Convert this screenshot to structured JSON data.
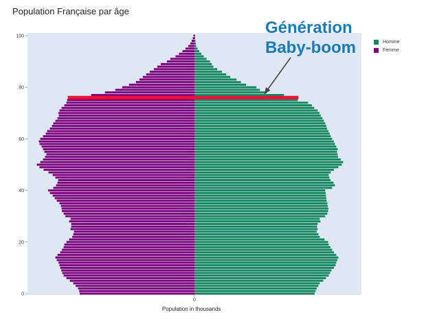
{
  "chart_data": {
    "type": "bar",
    "orientation": "horizontal",
    "title": "Population Française par âge",
    "xlabel": "Population in thousands",
    "ylabel": "",
    "ylim": [
      0,
      100
    ],
    "xlim": [
      -485,
      485
    ],
    "yticks": [
      "0",
      "20",
      "40",
      "60",
      "80",
      "100"
    ],
    "xticks": [
      "0"
    ],
    "legend": {
      "position": "top-right",
      "entries": [
        "Homme",
        "Femme"
      ]
    },
    "annotation": {
      "lines": [
        "Génération",
        "Baby-boom"
      ],
      "arrow_target_age": 78
    },
    "highlight_age": 76,
    "ages": [
      0,
      1,
      2,
      3,
      4,
      5,
      6,
      7,
      8,
      9,
      10,
      11,
      12,
      13,
      14,
      15,
      16,
      17,
      18,
      19,
      20,
      21,
      22,
      23,
      24,
      25,
      26,
      27,
      28,
      29,
      30,
      31,
      32,
      33,
      34,
      35,
      36,
      37,
      38,
      39,
      40,
      41,
      42,
      43,
      44,
      45,
      46,
      47,
      48,
      49,
      50,
      51,
      52,
      53,
      54,
      55,
      56,
      57,
      58,
      59,
      60,
      61,
      62,
      63,
      64,
      65,
      66,
      67,
      68,
      69,
      70,
      71,
      72,
      73,
      74,
      75,
      76,
      77,
      78,
      79,
      80,
      81,
      82,
      83,
      84,
      85,
      86,
      87,
      88,
      89,
      90,
      91,
      92,
      93,
      94,
      95,
      96,
      97,
      98,
      99,
      100
    ],
    "series": [
      {
        "name": "Homme",
        "values": [
          349,
          352,
          355,
          360,
          364,
          374,
          382,
          390,
          394,
          398,
          405,
          410,
          412,
          415,
          418,
          412,
          405,
          400,
          395,
          390,
          388,
          378,
          364,
          360,
          355,
          358,
          356,
          358,
          366,
          364,
          380,
          386,
          388,
          389,
          387,
          386,
          384,
          383,
          382,
          381,
          380,
          400,
          408,
          404,
          395,
          392,
          390,
          396,
          405,
          418,
          428,
          432,
          425,
          417,
          416,
          414,
          416,
          412,
          408,
          405,
          400,
          396,
          393,
          389,
          385,
          383,
          380,
          376,
          372,
          367,
          363,
          358,
          348,
          341,
          330,
          300,
          290,
          260,
          210,
          190,
          180,
          150,
          135,
          122,
          104,
          92,
          80,
          66,
          55,
          50,
          45,
          35,
          27,
          20,
          14,
          9,
          5,
          4,
          3,
          2,
          2
        ],
        "color": "#16875e"
      },
      {
        "name": "Femme",
        "values": [
          -333,
          -335,
          -338,
          -345,
          -352,
          -362,
          -372,
          -380,
          -384,
          -387,
          -390,
          -392,
          -395,
          -400,
          -404,
          -398,
          -390,
          -385,
          -380,
          -378,
          -372,
          -364,
          -355,
          -352,
          -350,
          -360,
          -358,
          -358,
          -364,
          -360,
          -375,
          -380,
          -385,
          -386,
          -388,
          -392,
          -400,
          -406,
          -412,
          -420,
          -425,
          -410,
          -402,
          -398,
          -396,
          -404,
          -412,
          -424,
          -438,
          -450,
          -458,
          -448,
          -440,
          -434,
          -430,
          -436,
          -440,
          -444,
          -450,
          -452,
          -448,
          -440,
          -432,
          -428,
          -420,
          -414,
          -410,
          -404,
          -398,
          -394,
          -395,
          -392,
          -386,
          -378,
          -372,
          -370,
          -360,
          -300,
          -260,
          -230,
          -210,
          -190,
          -170,
          -160,
          -150,
          -140,
          -130,
          -118,
          -108,
          -98,
          -80,
          -70,
          -55,
          -45,
          -35,
          -26,
          -18,
          -12,
          -8,
          -5,
          -3
        ],
        "color": "#7d007d"
      }
    ],
    "colors": {
      "homme": "#16875e",
      "femme": "#7d007d",
      "highlight": "#ee1133",
      "annotation": "#1a7ab8",
      "plot_bg": "#dfe7f3"
    }
  }
}
